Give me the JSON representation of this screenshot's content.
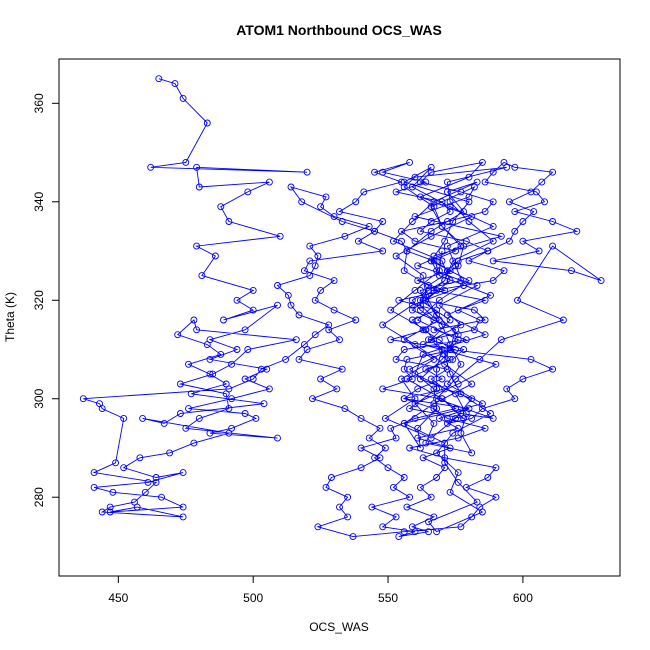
{
  "chart_data": {
    "type": "line",
    "title": "ATOM1 Northbound OCS_WAS",
    "xlabel": "OCS_WAS",
    "ylabel": "Theta (K)",
    "xlim": [
      428,
      636
    ],
    "ylim": [
      264,
      369
    ],
    "xticks": [
      450,
      500,
      550,
      600
    ],
    "yticks": [
      280,
      300,
      320,
      340,
      360
    ],
    "series_color": "#0000ff",
    "marker": "open-circle",
    "grid": false,
    "legend": "none",
    "series": [
      {
        "x": [
          465,
          471,
          474,
          483,
          475,
          462,
          520,
          479,
          480,
          506,
          498,
          488,
          491,
          510,
          479,
          486,
          481,
          500,
          494,
          500,
          489,
          509,
          497,
          484,
          494,
          484,
          505,
          497,
          506,
          492,
          476,
          497,
          501,
          492,
          484,
          509,
          475,
          480,
          491,
          490,
          473,
          485,
          492,
          498,
          516,
          479,
          478,
          472,
          483,
          488,
          476,
          484,
          490,
          477,
          504,
          473,
          467,
          459,
          491,
          478,
          469,
          458,
          452,
          464,
          474,
          461,
          441,
          448,
          466,
          474,
          447,
          457,
          474,
          444,
          447,
          456,
          460,
          464,
          441,
          449,
          452,
          444,
          443,
          437,
          491,
          500,
          503,
          512,
          519,
          523,
          528,
          517,
          514,
          513,
          509,
          521,
          523,
          524,
          521,
          534,
          543,
          530,
          525,
          527,
          514,
          518,
          533,
          545,
          539,
          548,
          521,
          519,
          530,
          525,
          523,
          530,
          538,
          528,
          532,
          520,
          517,
          533,
          525,
          531,
          522,
          534,
          540,
          547,
          543,
          549,
          545,
          550,
          556,
          552,
          558,
          544,
          553,
          548,
          560,
          554,
          565,
          559,
          567,
          557,
          566,
          562,
          568,
          571,
          563,
          573,
          561,
          576,
          569,
          580,
          556,
          561,
          570,
          564,
          574,
          578,
          565,
          582,
          584,
          576,
          586,
          567,
          589,
          593,
          580,
          587,
          595,
          597,
          600,
          604,
          595,
          603,
          607,
          611,
          597,
          593,
          589,
          586,
          605,
          608,
          597,
          611,
          620,
          600,
          606,
          589,
          618,
          629,
          611,
          598,
          615,
          592,
          584,
          575,
          568,
          589,
          577,
          572,
          581,
          585,
          597,
          594,
          600,
          611,
          603,
          573,
          569,
          563,
          559,
          568,
          554,
          571,
          561,
          573,
          567,
          557,
          555,
          545,
          548,
          532,
          538,
          541,
          555,
          545,
          558,
          548,
          564,
          553,
          570,
          573,
          566,
          562,
          579,
          587,
          576,
          572,
          571,
          565,
          559,
          562,
          567,
          564,
          551,
          575,
          557,
          556,
          559,
          548,
          570,
          575,
          560,
          551,
          553,
          540,
          547,
          540,
          529,
          527,
          535,
          532,
          535,
          524,
          537,
          556,
          577,
          581,
          584,
          590,
          579,
          587,
          590,
          571,
          558,
          576,
          586,
          572,
          567,
          556,
          571,
          566,
          572,
          553,
          556,
          579,
          567,
          586,
          582,
          563,
          562,
          577,
          568,
          566,
          575,
          560,
          555,
          572,
          586,
          589,
          577,
          562,
          566,
          585,
          580,
          562,
          581,
          566,
          553,
          563,
          564,
          568,
          576,
          571,
          573,
          577,
          588,
          574,
          568,
          576,
          573,
          585,
          568,
          565,
          583,
          576,
          571,
          571,
          556,
          567,
          581,
          571,
          560,
          548,
          559,
          578,
          575,
          572,
          589,
          573,
          559,
          566,
          556,
          580,
          574,
          571,
          566,
          580,
          569,
          561,
          576,
          570,
          562,
          581,
          575,
          566,
          549,
          560,
          555,
          567,
          556,
          569,
          564,
          573,
          570,
          552,
          559,
          567,
          583,
          572,
          578,
          566,
          557,
          556,
          568,
          559,
          575,
          573,
          558,
          567,
          568,
          561,
          562,
          556,
          585,
          572,
          577,
          573,
          570,
          562,
          565,
          576,
          578,
          570,
          566,
          582,
          580,
          560,
          592,
          567,
          569,
          588,
          572,
          586,
          563,
          560,
          575,
          579,
          577,
          581,
          564,
          567,
          560,
          576,
          590,
          563,
          577,
          569,
          583,
          561,
          577,
          570,
          567,
          556,
          560,
          594,
          572,
          573,
          580,
          589,
          574,
          571,
          562,
          573,
          566,
          573,
          557,
          570,
          578,
          558,
          568,
          568,
          570,
          564,
          551,
          560,
          569,
          570
        ],
        "y": [
          365,
          364,
          361,
          356,
          348,
          347,
          346,
          347,
          343,
          344,
          342,
          339,
          336,
          333,
          331,
          329,
          325,
          322,
          320,
          318,
          316,
          319,
          314,
          312,
          310,
          308,
          306,
          304,
          302,
          300,
          298,
          297,
          296,
          294,
          293,
          292,
          294,
          296,
          298,
          301,
          303,
          305,
          307,
          310,
          312,
          314,
          316,
          313,
          311,
          309,
          307,
          305,
          303,
          301,
          299,
          297,
          295,
          296,
          293,
          291,
          289,
          288,
          286,
          284,
          285,
          283,
          282,
          281,
          280,
          278,
          277,
          278,
          276,
          277,
          278,
          279,
          281,
          283,
          285,
          287,
          296,
          298,
          299,
          300,
          302,
          304,
          306,
          308,
          311,
          313,
          315,
          317,
          319,
          321,
          323,
          325,
          327,
          329,
          331,
          333,
          335,
          337,
          339,
          341,
          343,
          340,
          336,
          334,
          332,
          330,
          328,
          326,
          324,
          322,
          320,
          318,
          316,
          314,
          312,
          310,
          308,
          306,
          304,
          302,
          300,
          298,
          296,
          294,
          292,
          290,
          288,
          286,
          284,
          282,
          280,
          278,
          276,
          274,
          273,
          272,
          273,
          274,
          276,
          278,
          280,
          282,
          284,
          286,
          288,
          290,
          292,
          294,
          296,
          298,
          300,
          302,
          304,
          306,
          308,
          310,
          312,
          314,
          316,
          318,
          320,
          322,
          324,
          326,
          328,
          330,
          332,
          334,
          336,
          338,
          340,
          342,
          344,
          346,
          347,
          348,
          346,
          344,
          342,
          340,
          338,
          336,
          334,
          332,
          330,
          328,
          326,
          324,
          331,
          320,
          316,
          312,
          308,
          304,
          300,
          296,
          297,
          295,
          296,
          298,
          300,
          302,
          304,
          306,
          308,
          310,
          312,
          314,
          316,
          318,
          320,
          322,
          324,
          326,
          328,
          330,
          332,
          334,
          336,
          338,
          340,
          342,
          344,
          346,
          348,
          346,
          344,
          342,
          340,
          338,
          336,
          334,
          332,
          330,
          328,
          326,
          324,
          322,
          320,
          318,
          316,
          314,
          312,
          310,
          308,
          306,
          304,
          302,
          300,
          298,
          296,
          294,
          292,
          290,
          288,
          286,
          284,
          282,
          280,
          278,
          276,
          274,
          272,
          273,
          274,
          276,
          278,
          280,
          282,
          284,
          286,
          288,
          290,
          292,
          294,
          296,
          298,
          300,
          302,
          304,
          306,
          308,
          310,
          312,
          314,
          316,
          318,
          320,
          322,
          324,
          326,
          328,
          330,
          332,
          334,
          336,
          338,
          340,
          342,
          344,
          346,
          348,
          345,
          341,
          337,
          333,
          329,
          325,
          321,
          317,
          313,
          309,
          305,
          301,
          297,
          293,
          289,
          285,
          281,
          277,
          273,
          275,
          279,
          283,
          287,
          291,
          295,
          299,
          303,
          307,
          311,
          315,
          319,
          323,
          327,
          331,
          335,
          339,
          343,
          347,
          344,
          340,
          336,
          332,
          328,
          324,
          320,
          316,
          312,
          308,
          304,
          300,
          296,
          292,
          296,
          300,
          304,
          308,
          312,
          316,
          320,
          324,
          328,
          332,
          336,
          340,
          344,
          342,
          338,
          334,
          330,
          326,
          322,
          318,
          314,
          310,
          306,
          302,
          298,
          294,
          290,
          295,
          299,
          303,
          307,
          311,
          315,
          319,
          323,
          327,
          331,
          335,
          339,
          343,
          341,
          337,
          333,
          329,
          325,
          321,
          317,
          313,
          309,
          305,
          301,
          297,
          293,
          289,
          291,
          295,
          299,
          303,
          307,
          311,
          315,
          319,
          323,
          327,
          331,
          335,
          339,
          343,
          345,
          347,
          344,
          340,
          336,
          332,
          328,
          324,
          320,
          316,
          312,
          308,
          304,
          300,
          296,
          298,
          302,
          306,
          310,
          314,
          318,
          322,
          326,
          330
        ]
      }
    ]
  }
}
